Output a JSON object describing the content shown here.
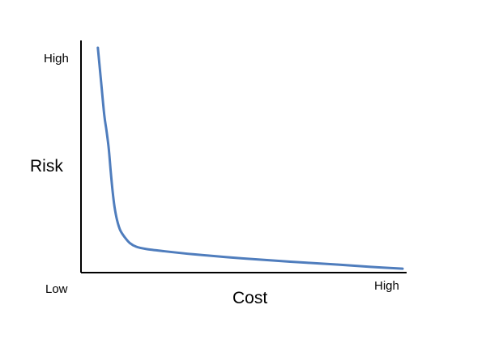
{
  "chart_data": {
    "type": "line",
    "title": "",
    "xlabel": "Cost",
    "ylabel": "Risk",
    "x_tick_labels": {
      "low": "Low",
      "high": "High"
    },
    "y_tick_labels": {
      "high": "High"
    },
    "xlim": [
      0,
      100
    ],
    "ylim": [
      0,
      100
    ],
    "grid": false,
    "line_color": "#4F7DBD",
    "series": [
      {
        "x": [
          5,
          6,
          7,
          7.7,
          8.4,
          9,
          9.6,
          10.2,
          11,
          12,
          13.5,
          15,
          17,
          20,
          25,
          35,
          50,
          65,
          80,
          90,
          100
        ],
        "y": [
          100,
          85,
          70,
          63,
          55,
          45,
          36,
          29,
          23,
          18.5,
          15.2,
          12.8,
          11.2,
          10.2,
          9.3,
          7.8,
          6,
          4.5,
          3.2,
          2.2,
          1.4
        ]
      }
    ]
  }
}
